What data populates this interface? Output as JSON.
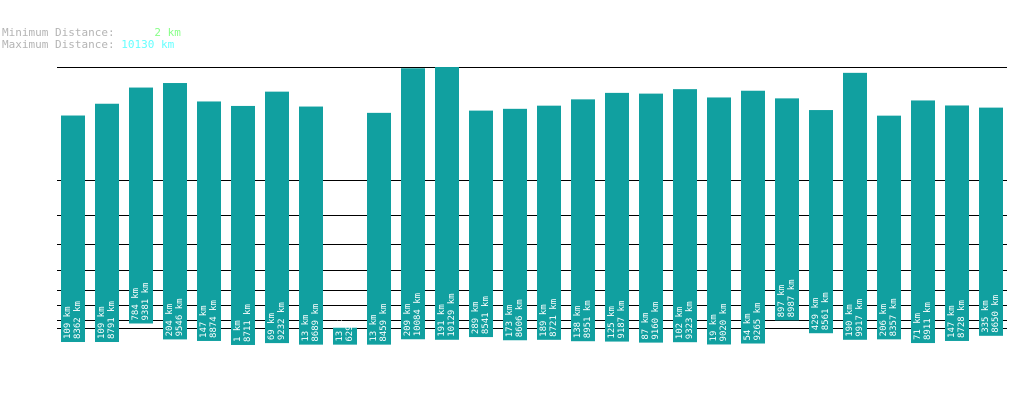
{
  "stats": {
    "min_label": "Minimum Distance:",
    "min_value": "2 km",
    "max_label": "Maximum Distance:",
    "max_value": "10130 km"
  },
  "colors": {
    "bar": "#11a0a0",
    "grid": "#000000",
    "label": "#ffffff",
    "stat_label": "#b4b4b4",
    "min_value": "#88ff88",
    "max_value": "#66ffff"
  },
  "chart_data": {
    "type": "bar",
    "title": "",
    "xlabel": "",
    "ylabel": "",
    "series": [
      {
        "name": "",
        "values": [
          {
            "min": 109,
            "max": 8362
          },
          {
            "min": 109,
            "max": 8791
          },
          {
            "min": 784,
            "max": 9381
          },
          {
            "min": 204,
            "max": 9546
          },
          {
            "min": 147,
            "max": 8874
          },
          {
            "min": 1,
            "max": 8711
          },
          {
            "min": 69,
            "max": 9232
          },
          {
            "min": 13,
            "max": 8689
          },
          {
            "min": 13,
            "max": 629
          },
          {
            "min": 13,
            "max": 8459
          },
          {
            "min": 209,
            "max": 10084
          },
          {
            "min": 191,
            "max": 10129
          },
          {
            "min": 289,
            "max": 8541
          },
          {
            "min": 173,
            "max": 8606
          },
          {
            "min": 189,
            "max": 8721
          },
          {
            "min": 138,
            "max": 8951
          },
          {
            "min": 125,
            "max": 9187
          },
          {
            "min": 87,
            "max": 9160
          },
          {
            "min": 102,
            "max": 9323
          },
          {
            "min": 19,
            "max": 9020
          },
          {
            "min": 54,
            "max": 9265
          },
          {
            "min": 897,
            "max": 8987
          },
          {
            "min": 429,
            "max": 8561
          },
          {
            "min": 190,
            "max": 9917
          },
          {
            "min": 206,
            "max": 8357
          },
          {
            "min": 71,
            "max": 8911
          },
          {
            "min": 147,
            "max": 8728
          },
          {
            "min": 335,
            "max": 8650
          }
        ]
      }
    ],
    "unit": "km",
    "grid": true,
    "legend": "none"
  }
}
